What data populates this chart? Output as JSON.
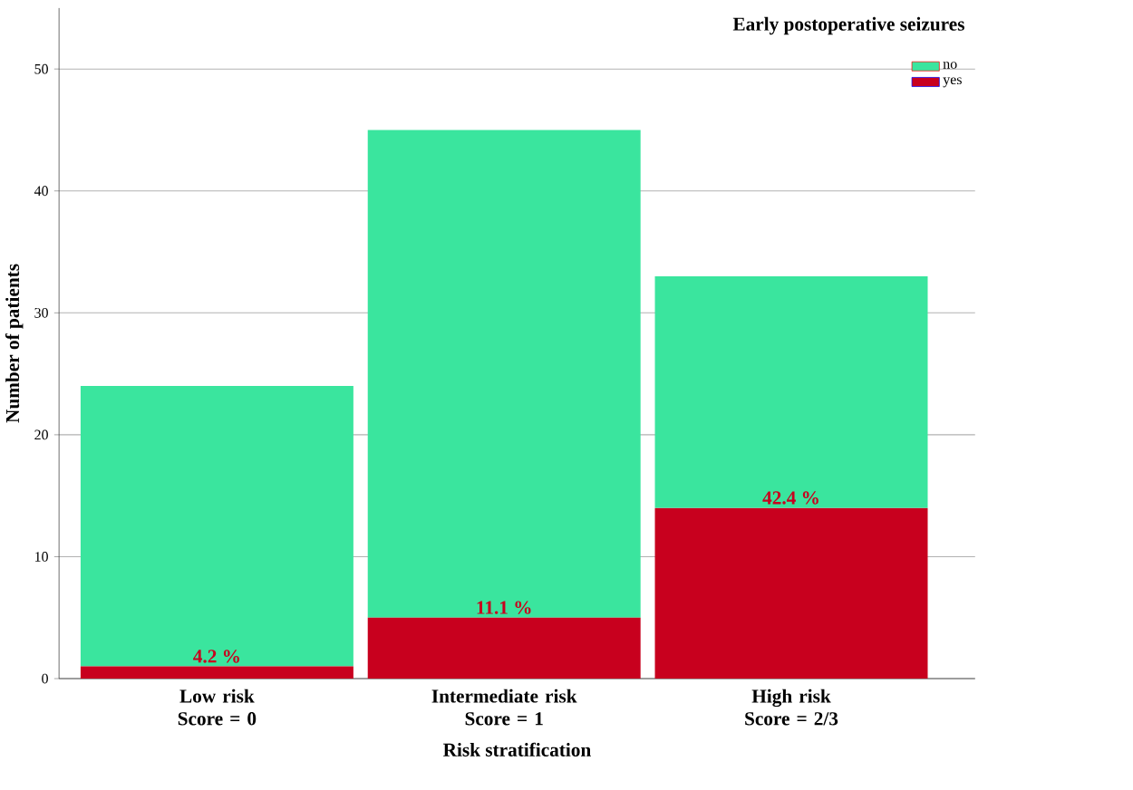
{
  "chart_data": {
    "type": "bar",
    "stacked": true,
    "xlabel": "Risk stratification",
    "ylabel": "Number of patients",
    "legend_title": "Early postoperative seizures",
    "categories": [
      "Low risk\nScore = 0",
      "Intermediate risk\nScore = 1",
      "High risk\nScore = 2/3"
    ],
    "annotations": [
      {
        "text": "4.2 %",
        "x": "Low risk\nScore = 0",
        "y": 1
      },
      {
        "text": "11.1 %",
        "x": "Intermediate risk\nScore = 1",
        "y": 5
      },
      {
        "text": "42.4 %",
        "x": "High risk\nScore = 2/3",
        "y": 14
      }
    ],
    "series": [
      {
        "name": "yes",
        "color": "#c8001e",
        "values": [
          1,
          5,
          14
        ]
      },
      {
        "name": "no",
        "color": "#3ae59e",
        "values": [
          23,
          40,
          19
        ]
      }
    ],
    "ylim": [
      0,
      55
    ],
    "yticks": [
      0,
      10,
      20,
      30,
      40,
      50
    ],
    "grid": "y",
    "legend": "top right"
  }
}
